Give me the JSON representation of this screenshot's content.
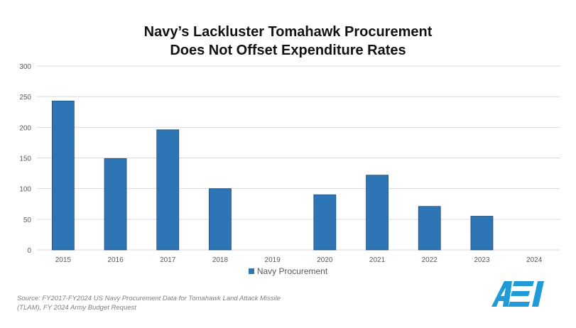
{
  "title_lines": [
    "Navy’s Lackluster Tomahawk Procurement",
    "Does Not Offset Expenditure Rates"
  ],
  "chart_data": {
    "type": "bar",
    "title": "Navy’s Lackluster Tomahawk Procurement Does Not Offset Expenditure Rates",
    "categories": [
      "2015",
      "2016",
      "2017",
      "2018",
      "2019",
      "2020",
      "2021",
      "2022",
      "2023",
      "2024"
    ],
    "series": [
      {
        "name": "Navy Procurement",
        "values": [
          243,
          149,
          196,
          100,
          0,
          90,
          122,
          71,
          55,
          0
        ]
      }
    ],
    "xlabel": "",
    "ylabel": "",
    "ylim": [
      0,
      300
    ],
    "yticks": [
      0,
      50,
      100,
      150,
      200,
      250,
      300
    ],
    "grid": true,
    "legend_position": "bottom"
  },
  "colors": {
    "bar": "#2E75B6",
    "bar_edge": "#1F4E79",
    "grid": "#D9D9D9",
    "tick_text": "#595959",
    "logo": "#1F9BD8"
  },
  "legend_label": "Navy Procurement",
  "source_text": "Source: FY2017-FY2024 US Navy Procurement Data for Tomahawk Land Attack Missile (TLAM), FY 2024 Army Budget Request",
  "logo_text": "AEI"
}
